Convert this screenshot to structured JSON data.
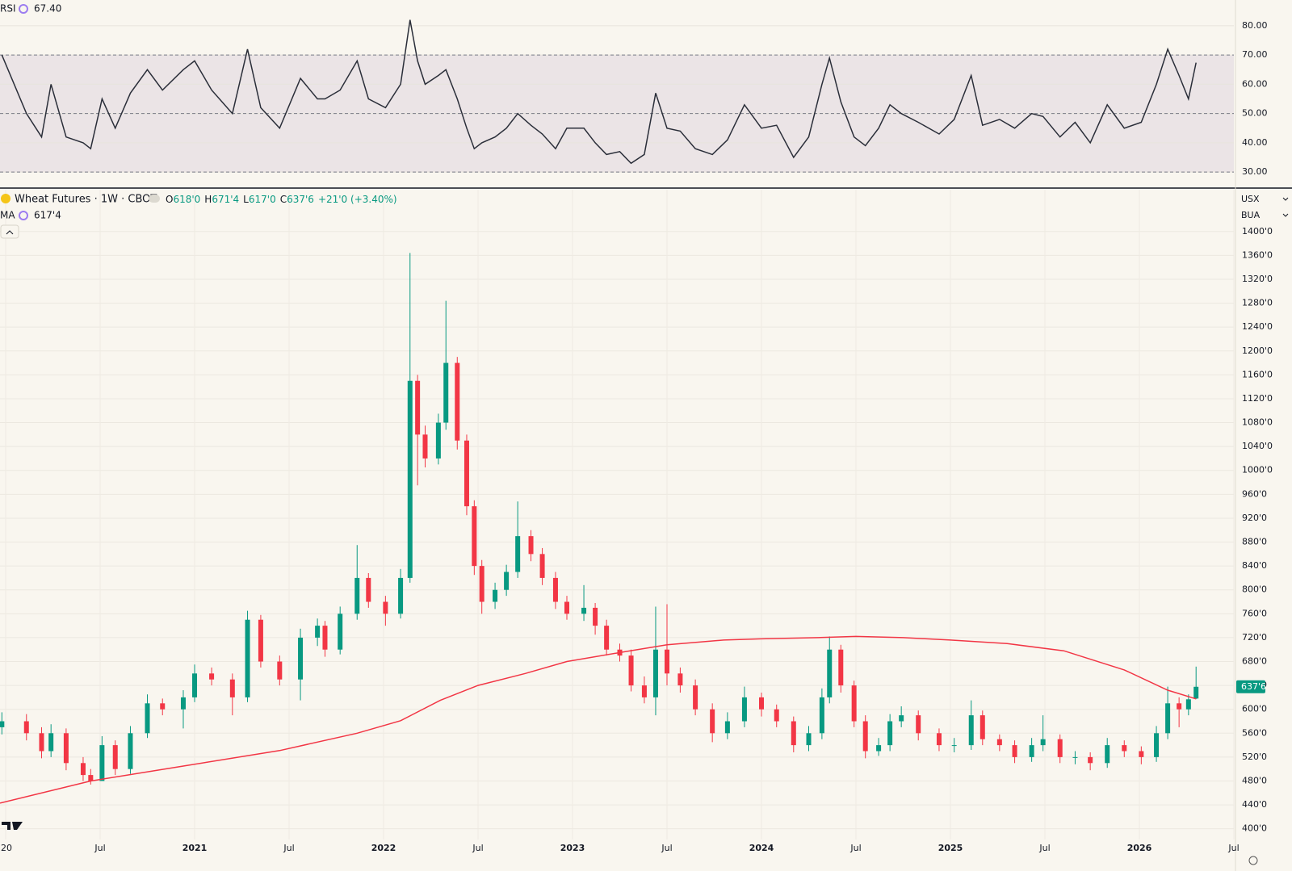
{
  "chart_data": [
    {
      "type": "line",
      "title": "RSI",
      "legend_value": {
        "value": 67.4,
        "label": "67.40"
      },
      "color": "#2a2e39",
      "band_color": "#ebe4e6",
      "levels": [
        70,
        50,
        30
      ],
      "xlim": [
        2019.97,
        2026.5
      ],
      "ylim": [
        24.8,
        88.8
      ],
      "yticks": [
        {
          "value": 80,
          "label": "80.00"
        },
        {
          "value": 70,
          "label": "70.00"
        },
        {
          "value": 60,
          "label": "60.00"
        },
        {
          "value": 50,
          "label": "50.00"
        },
        {
          "value": 40,
          "label": "40.00"
        },
        {
          "value": 30,
          "label": "30.00"
        }
      ],
      "x": [
        2019.98,
        2020.11,
        2020.19,
        2020.24,
        2020.32,
        2020.41,
        2020.45,
        2020.51,
        2020.58,
        2020.66,
        2020.75,
        2020.83,
        2020.94,
        2021.0,
        2021.09,
        2021.2,
        2021.28,
        2021.35,
        2021.45,
        2021.56,
        2021.65,
        2021.69,
        2021.77,
        2021.86,
        2021.92,
        2022.01,
        2022.09,
        2022.14,
        2022.18,
        2022.22,
        2022.29,
        2022.33,
        2022.39,
        2022.44,
        2022.48,
        2022.52,
        2022.59,
        2022.65,
        2022.71,
        2022.78,
        2022.84,
        2022.91,
        2022.97,
        2023.06,
        2023.12,
        2023.18,
        2023.25,
        2023.31,
        2023.38,
        2023.44,
        2023.5,
        2023.57,
        2023.65,
        2023.74,
        2023.82,
        2023.91,
        2024.0,
        2024.08,
        2024.17,
        2024.25,
        2024.32,
        2024.36,
        2024.42,
        2024.49,
        2024.55,
        2024.62,
        2024.68,
        2024.74,
        2024.83,
        2024.94,
        2025.02,
        2025.11,
        2025.17,
        2025.26,
        2025.34,
        2025.43,
        2025.49,
        2025.58,
        2025.66,
        2025.74,
        2025.83,
        2025.92,
        2026.01,
        2026.09,
        2026.15,
        2026.21,
        2026.26,
        2026.3
      ],
      "values": [
        70,
        50,
        42,
        60,
        42,
        40,
        38,
        55,
        45,
        57,
        65,
        58,
        65,
        68,
        58,
        50,
        72,
        52,
        45,
        62,
        55,
        55,
        58,
        68,
        55,
        52,
        60,
        82,
        68,
        60,
        63,
        65,
        55,
        45,
        38,
        40,
        42,
        45,
        50,
        46,
        43,
        38,
        45,
        45,
        40,
        36,
        37,
        33,
        36,
        57,
        45,
        44,
        38,
        36,
        41,
        53,
        45,
        46,
        35,
        42,
        60,
        69,
        54,
        42,
        39,
        45,
        53,
        50,
        47,
        43,
        48,
        63,
        46,
        48,
        45,
        50,
        49,
        42,
        47,
        40,
        53,
        45,
        47,
        60,
        72,
        63,
        55,
        67.4
      ]
    },
    {
      "type": "candlestick",
      "title": "Wheat Futures · 1W · CBOT",
      "legend": [
        {
          "key": "O",
          "value": "618'0"
        },
        {
          "key": "H",
          "value": "671'4"
        },
        {
          "key": "L",
          "value": "617'0"
        },
        {
          "key": "C",
          "value": "637'6"
        }
      ],
      "change": "+21'0 (+3.40%)",
      "currency": "USX",
      "unit": "BUA",
      "up_color": "#089981",
      "down_color": "#f23645",
      "last_label": {
        "value": 637.75,
        "label": "637'6"
      },
      "xlim": [
        2019.97,
        2026.5
      ],
      "ylim": [
        382,
        1470
      ],
      "xticks": [
        {
          "value": 2020,
          "label": "20"
        },
        {
          "value": 2020.5,
          "label": "Jul"
        },
        2021,
        {
          "value": 2021.5,
          "label": "Jul"
        },
        2022,
        {
          "value": 2022.5,
          "label": "Jul"
        },
        2023,
        {
          "value": 2023.5,
          "label": "Jul"
        },
        2024,
        {
          "value": 2024.5,
          "label": "Jul"
        },
        2025,
        {
          "value": 2025.5,
          "label": "Jul"
        },
        2026,
        {
          "value": 2026.5,
          "label": "Jul"
        }
      ],
      "yticks": [
        {
          "value": 400,
          "label": "400'0"
        },
        {
          "value": 440,
          "label": "440'0"
        },
        {
          "value": 480,
          "label": "480'0"
        },
        {
          "value": 520,
          "label": "520'0"
        },
        {
          "value": 560,
          "label": "560'0"
        },
        {
          "value": 600,
          "label": "600'0"
        },
        {
          "value": 640,
          "label": "640'0"
        },
        {
          "value": 680,
          "label": "680'0"
        },
        {
          "value": 720,
          "label": "720'0"
        },
        {
          "value": 760,
          "label": "760'0"
        },
        {
          "value": 800,
          "label": "800'0"
        },
        {
          "value": 840,
          "label": "840'0"
        },
        {
          "value": 880,
          "label": "880'0"
        },
        {
          "value": 920,
          "label": "920'0"
        },
        {
          "value": 960,
          "label": "960'0"
        },
        {
          "value": 1000,
          "label": "1000'0"
        },
        {
          "value": 1040,
          "label": "1040'0"
        },
        {
          "value": 1080,
          "label": "1080'0"
        },
        {
          "value": 1120,
          "label": "1120'0"
        },
        {
          "value": 1160,
          "label": "1160'0"
        },
        {
          "value": 1200,
          "label": "1200'0"
        },
        {
          "value": 1240,
          "label": "1240'0"
        },
        {
          "value": 1280,
          "label": "1280'0"
        },
        {
          "value": 1320,
          "label": "1320'0"
        },
        {
          "value": 1360,
          "label": "1360'0"
        },
        {
          "value": 1400,
          "label": "1400'0"
        }
      ],
      "x": [
        2019.98,
        2020.11,
        2020.19,
        2020.24,
        2020.32,
        2020.41,
        2020.45,
        2020.51,
        2020.58,
        2020.66,
        2020.75,
        2020.83,
        2020.94,
        2021.0,
        2021.09,
        2021.2,
        2021.28,
        2021.35,
        2021.45,
        2021.56,
        2021.65,
        2021.69,
        2021.77,
        2021.86,
        2021.92,
        2022.01,
        2022.09,
        2022.14,
        2022.18,
        2022.22,
        2022.29,
        2022.33,
        2022.39,
        2022.44,
        2022.48,
        2022.52,
        2022.59,
        2022.65,
        2022.71,
        2022.78,
        2022.84,
        2022.91,
        2022.97,
        2023.06,
        2023.12,
        2023.18,
        2023.25,
        2023.31,
        2023.38,
        2023.44,
        2023.5,
        2023.57,
        2023.65,
        2023.74,
        2023.82,
        2023.91,
        2024.0,
        2024.08,
        2024.17,
        2024.25,
        2024.32,
        2024.36,
        2024.42,
        2024.49,
        2024.55,
        2024.62,
        2024.68,
        2024.74,
        2024.83,
        2024.94,
        2025.02,
        2025.11,
        2025.17,
        2025.26,
        2025.34,
        2025.43,
        2025.49,
        2025.58,
        2025.66,
        2025.74,
        2025.83,
        2025.92,
        2026.01,
        2026.09,
        2026.15,
        2026.21,
        2026.26,
        2026.3
      ],
      "open": [
        570,
        580,
        560,
        530,
        560,
        510,
        490,
        480,
        540,
        500,
        560,
        610,
        600,
        620,
        660,
        650,
        620,
        750,
        680,
        650,
        720,
        740,
        700,
        760,
        820,
        780,
        760,
        820,
        1150,
        1060,
        1020,
        1080,
        1180,
        1050,
        940,
        840,
        780,
        800,
        830,
        890,
        860,
        820,
        780,
        760,
        770,
        740,
        700,
        690,
        640,
        620,
        700,
        660,
        640,
        600,
        560,
        580,
        620,
        600,
        580,
        540,
        560,
        620,
        700,
        640,
        580,
        530,
        540,
        580,
        590,
        560,
        540,
        540,
        590,
        550,
        540,
        520,
        540,
        550,
        520,
        520,
        510,
        540,
        530,
        520,
        560,
        610,
        600,
        618
      ],
      "high": [
        595,
        592,
        570,
        575,
        568,
        520,
        500,
        555,
        548,
        572,
        625,
        618,
        632,
        675,
        670,
        660,
        765,
        758,
        690,
        735,
        752,
        748,
        772,
        875,
        828,
        790,
        835,
        1364,
        1160,
        1075,
        1095,
        1284,
        1190,
        1060,
        950,
        850,
        812,
        842,
        948,
        900,
        870,
        830,
        790,
        808,
        778,
        750,
        710,
        700,
        655,
        772,
        776,
        670,
        650,
        610,
        595,
        638,
        628,
        608,
        588,
        572,
        635,
        722,
        708,
        648,
        590,
        552,
        592,
        605,
        598,
        568,
        552,
        615,
        598,
        558,
        548,
        552,
        590,
        558,
        530,
        528,
        552,
        548,
        538,
        572,
        638,
        620,
        625,
        671.5
      ],
      "low": [
        558,
        548,
        518,
        520,
        498,
        480,
        474,
        488,
        490,
        492,
        552,
        590,
        568,
        612,
        640,
        590,
        612,
        670,
        640,
        615,
        706,
        688,
        692,
        750,
        770,
        740,
        752,
        812,
        975,
        1005,
        1010,
        1068,
        1035,
        925,
        825,
        760,
        768,
        790,
        820,
        848,
        808,
        768,
        750,
        748,
        725,
        690,
        680,
        630,
        610,
        590,
        640,
        628,
        590,
        545,
        550,
        570,
        588,
        570,
        528,
        530,
        550,
        610,
        628,
        570,
        518,
        522,
        530,
        570,
        548,
        530,
        528,
        532,
        540,
        530,
        510,
        512,
        530,
        510,
        508,
        498,
        502,
        520,
        508,
        512,
        550,
        570,
        590,
        617
      ],
      "close": [
        580,
        560,
        530,
        560,
        510,
        490,
        480,
        540,
        500,
        560,
        610,
        600,
        620,
        660,
        650,
        620,
        750,
        680,
        650,
        720,
        740,
        700,
        760,
        820,
        780,
        760,
        820,
        1150,
        1060,
        1020,
        1080,
        1180,
        1050,
        940,
        840,
        780,
        800,
        830,
        890,
        860,
        820,
        780,
        760,
        770,
        740,
        700,
        690,
        640,
        620,
        700,
        660,
        640,
        600,
        560,
        580,
        620,
        600,
        580,
        540,
        560,
        620,
        700,
        640,
        580,
        530,
        540,
        580,
        590,
        560,
        540,
        540,
        590,
        550,
        540,
        520,
        540,
        550,
        520,
        520,
        510,
        540,
        530,
        520,
        560,
        610,
        600,
        616.75,
        637.75
      ],
      "ma": {
        "name": "MA",
        "legend_value": "617'4",
        "color": "#f23645",
        "x": [
          2019.97,
          2020.45,
          2020.94,
          2021.45,
          2021.86,
          2022.09,
          2022.3,
          2022.5,
          2022.75,
          2022.97,
          2023.25,
          2023.5,
          2023.8,
          2024.0,
          2024.3,
          2024.5,
          2024.75,
          2025.0,
          2025.3,
          2025.6,
          2025.92,
          2026.15,
          2026.3
        ],
        "values": [
          443,
          480,
          505,
          531,
          560,
          581,
          615,
          640,
          660,
          680,
          695,
          708,
          716,
          718,
          720,
          722,
          720,
          716,
          710,
          698,
          666,
          632,
          617.5
        ]
      }
    }
  ]
}
